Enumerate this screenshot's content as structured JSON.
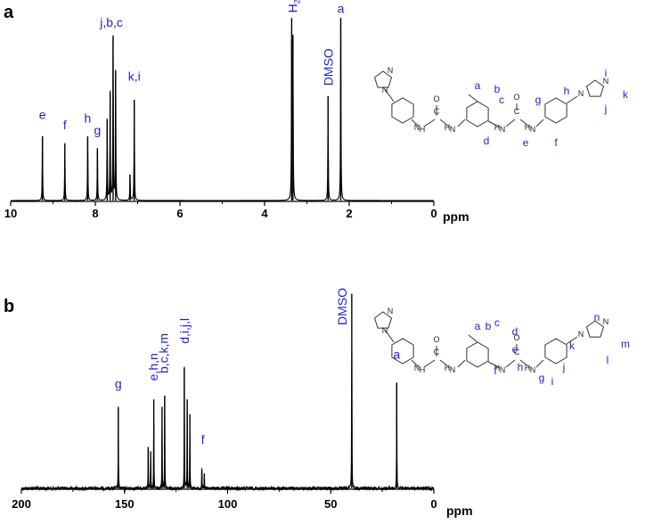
{
  "chart_data": [
    {
      "type": "line",
      "panel_label": "a",
      "xlabel": "ppm",
      "xlim": [
        10,
        0
      ],
      "x_ticks": [
        "10",
        "8",
        "6",
        "4",
        "2",
        "0"
      ],
      "peaks": [
        {
          "ppm": 9.25,
          "height": 0.37
        },
        {
          "ppm": 8.72,
          "height": 0.33
        },
        {
          "ppm": 8.18,
          "height": 0.37
        },
        {
          "ppm": 7.95,
          "height": 0.3
        },
        {
          "ppm": 7.72,
          "height": 0.47
        },
        {
          "ppm": 7.65,
          "height": 0.62
        },
        {
          "ppm": 7.58,
          "height": 0.95
        },
        {
          "ppm": 7.52,
          "height": 0.75
        },
        {
          "ppm": 7.18,
          "height": 0.15
        },
        {
          "ppm": 7.08,
          "height": 0.58
        },
        {
          "ppm": 3.36,
          "height": 1.05
        },
        {
          "ppm": 3.33,
          "height": 0.95
        },
        {
          "ppm": 2.5,
          "height": 0.6
        },
        {
          "ppm": 2.2,
          "height": 1.05
        }
      ],
      "annotations": [
        {
          "text": "e",
          "ppm": 9.25,
          "level": 0.47,
          "vertical": false
        },
        {
          "text": "f",
          "ppm": 8.72,
          "level": 0.41,
          "vertical": false
        },
        {
          "text": "h",
          "ppm": 8.18,
          "level": 0.45,
          "vertical": false
        },
        {
          "text": "g",
          "ppm": 7.95,
          "level": 0.38,
          "vertical": false
        },
        {
          "text": "j,b,c",
          "ppm": 7.62,
          "level": 1.0,
          "vertical": false
        },
        {
          "text": "k,i",
          "ppm": 7.08,
          "level": 0.69,
          "vertical": false
        },
        {
          "text": "H2O",
          "ppm": 3.34,
          "level": 1.08,
          "vertical": true
        },
        {
          "text": "DMSO",
          "ppm": 2.5,
          "level": 0.66,
          "vertical": true
        },
        {
          "text": "a",
          "ppm": 2.2,
          "level": 1.08,
          "vertical": false
        }
      ],
      "molecule_labels": [
        "a",
        "b",
        "c",
        "d",
        "e",
        "f",
        "g",
        "h",
        "i",
        "j",
        "k"
      ]
    },
    {
      "type": "line",
      "panel_label": "b",
      "xlabel": "ppm",
      "xlim": [
        200,
        0
      ],
      "x_ticks": [
        "200",
        "150",
        "100",
        "50",
        "0"
      ],
      "peaks": [
        {
          "ppm": 153.0,
          "height": 0.44
        },
        {
          "ppm": 138.5,
          "height": 0.22
        },
        {
          "ppm": 137.3,
          "height": 0.2
        },
        {
          "ppm": 135.8,
          "height": 0.48
        },
        {
          "ppm": 131.8,
          "height": 0.44
        },
        {
          "ppm": 130.5,
          "height": 0.5
        },
        {
          "ppm": 121.0,
          "height": 0.65
        },
        {
          "ppm": 119.6,
          "height": 0.48
        },
        {
          "ppm": 118.3,
          "height": 0.4
        },
        {
          "ppm": 112.5,
          "height": 0.1
        },
        {
          "ppm": 111.3,
          "height": 0.08
        },
        {
          "ppm": 39.8,
          "height": 1.05
        },
        {
          "ppm": 18.0,
          "height": 0.57
        }
      ],
      "annotations": [
        {
          "text": "g",
          "ppm": 153.0,
          "level": 0.54,
          "vertical": false
        },
        {
          "text": "e,h,n",
          "ppm": 136.0,
          "level": 0.58,
          "vertical": true
        },
        {
          "text": "b,c,k,m",
          "ppm": 131.0,
          "level": 0.62,
          "vertical": true
        },
        {
          "text": "d,i,j,l",
          "ppm": 121.0,
          "level": 0.78,
          "vertical": true
        },
        {
          "text": "f",
          "ppm": 112.0,
          "level": 0.24,
          "vertical": false
        },
        {
          "text": "DMSO",
          "ppm": 44.5,
          "level": 0.88,
          "vertical": true
        },
        {
          "text": "a",
          "ppm": 18.0,
          "level": 0.7,
          "vertical": false
        }
      ],
      "molecule_labels": [
        "a",
        "b",
        "c",
        "d",
        "e",
        "f",
        "g",
        "h",
        "i",
        "j",
        "k",
        "l",
        "m",
        "n"
      ]
    }
  ],
  "colors": {
    "spectrum": "#000000",
    "annotation": "#1f1fd6",
    "molecule_bonds": "#333333"
  }
}
